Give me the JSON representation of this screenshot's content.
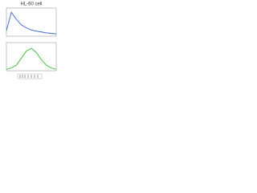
{
  "chart_data": [
    {
      "type": "line",
      "title": "HL-60 cell",
      "color": "#3a5fcd",
      "x": [
        0,
        1,
        2,
        3,
        4,
        5,
        6,
        7,
        8,
        9,
        10
      ],
      "values": [
        20,
        85,
        60,
        40,
        30,
        22,
        18,
        15,
        12,
        10,
        8
      ],
      "xlim": [
        0,
        10
      ],
      "ylim": [
        0,
        100
      ]
    },
    {
      "type": "line",
      "color": "#2db82d",
      "x": [
        0,
        1,
        2,
        3,
        4,
        5,
        6,
        7,
        8,
        9,
        10
      ],
      "values": [
        5,
        10,
        20,
        45,
        70,
        80,
        65,
        40,
        20,
        10,
        5
      ],
      "xlim": [
        0,
        10
      ],
      "ylim": [
        0,
        100
      ]
    }
  ]
}
